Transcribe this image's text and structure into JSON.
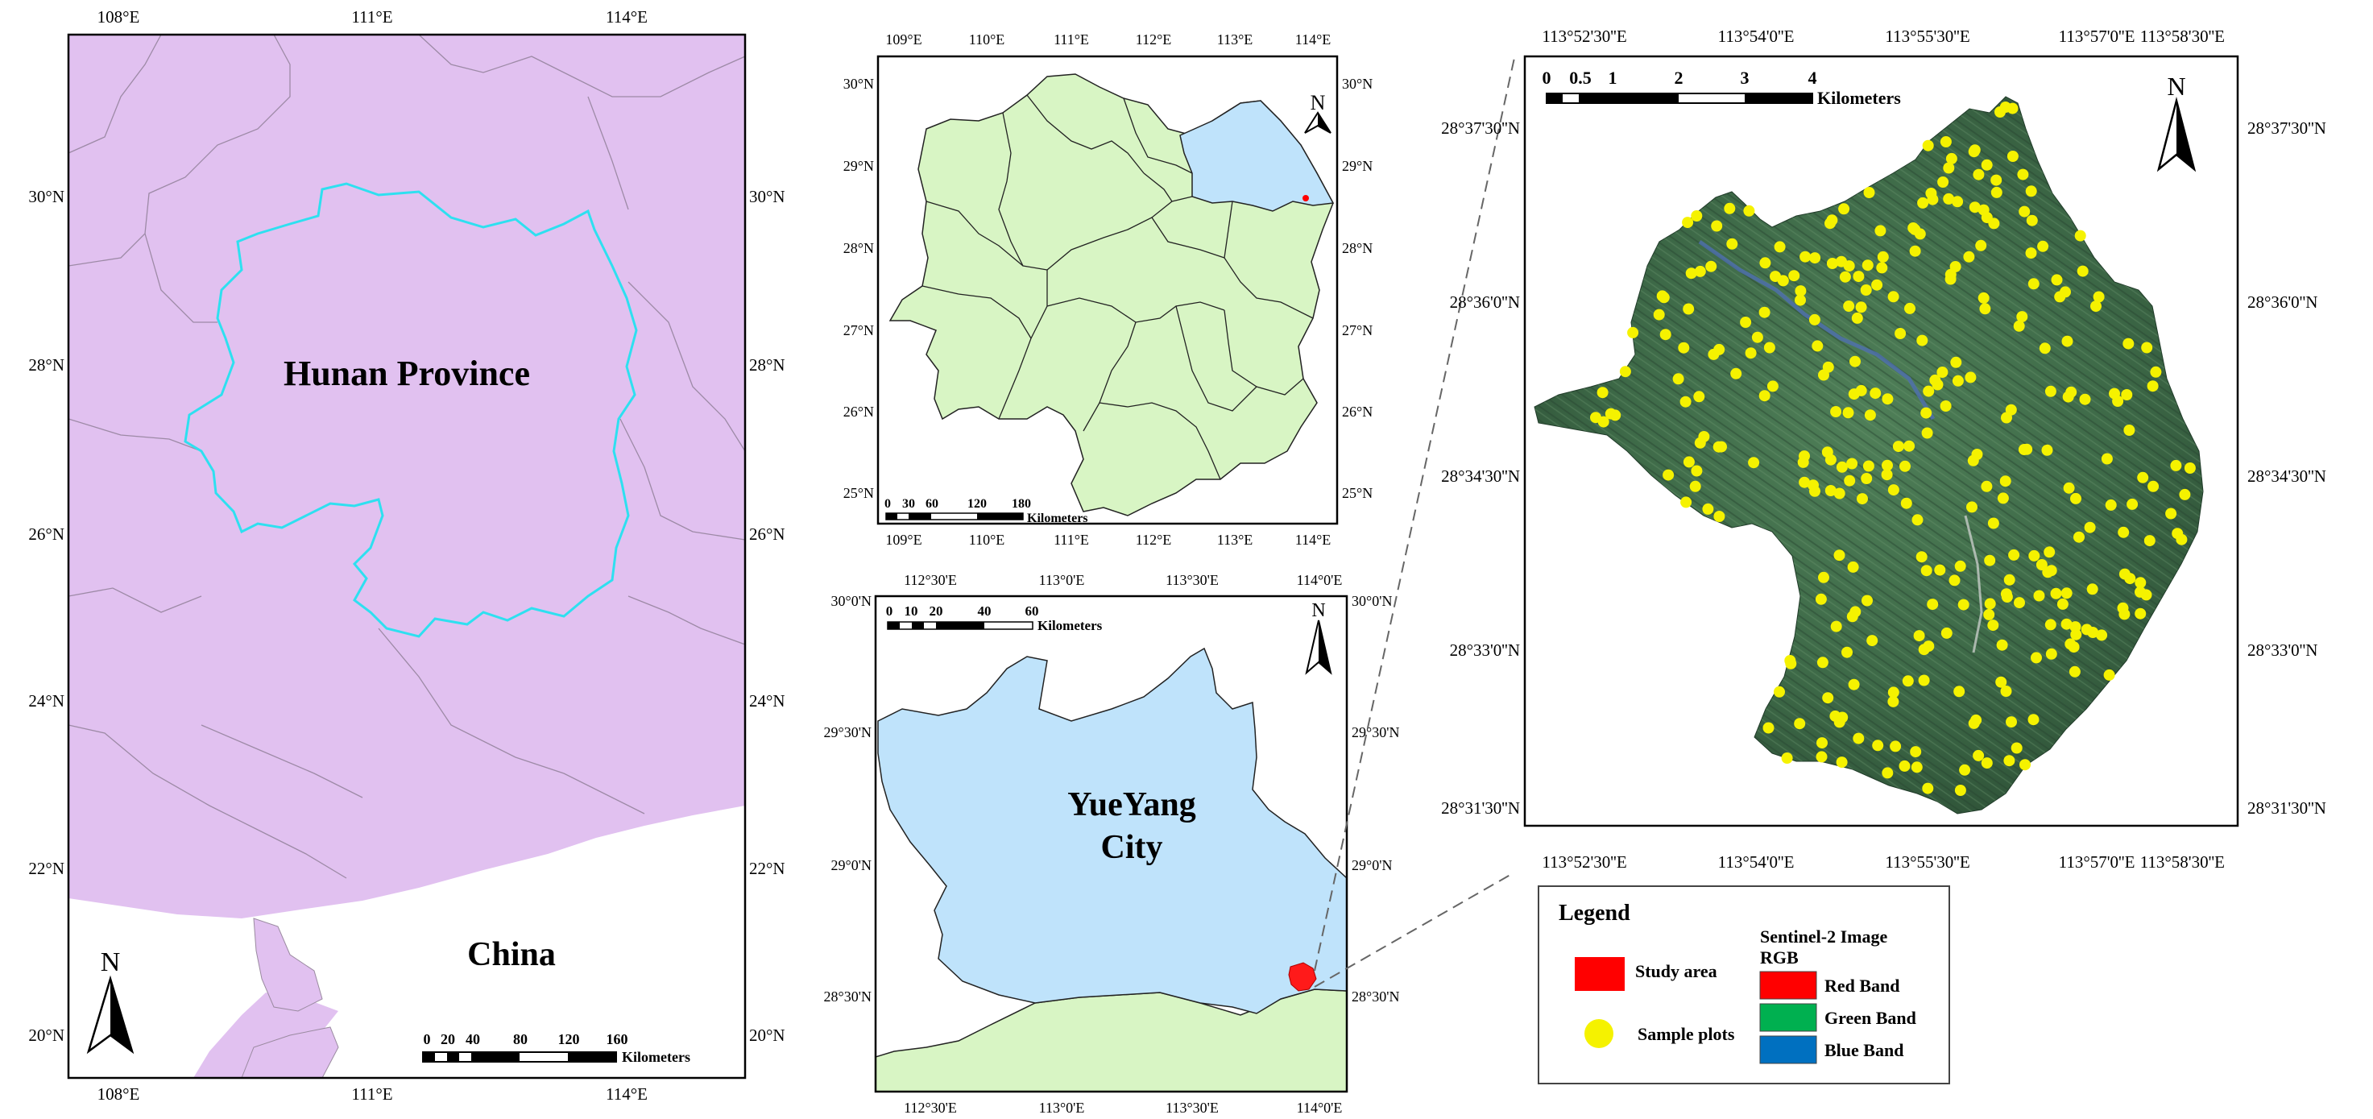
{
  "panels": {
    "china": {
      "top_ticks": [
        "108°E",
        "111°E",
        "114°E"
      ],
      "bottom_ticks": [
        "108°E",
        "111°E",
        "114°E"
      ],
      "left_ticks": [
        "30°N",
        "28°N",
        "26°N",
        "24°N",
        "22°N",
        "20°N"
      ],
      "right_ticks": [
        "30°N",
        "28°N",
        "26°N",
        "24°N",
        "22°N",
        "20°N"
      ],
      "province_label": "Hunan Province",
      "country_label": "China",
      "north_label": "N",
      "scale_numbers": [
        "0",
        "20",
        "40",
        "80",
        "120",
        "160"
      ],
      "scale_unit": "Kilometers",
      "colors": {
        "land": "#e1c1f0",
        "boundary": "#2ee0f0",
        "sea": "#ffffff"
      }
    },
    "hunan": {
      "top_ticks": [
        "109°E",
        "110°E",
        "111°E",
        "112°E",
        "113°E",
        "114°E"
      ],
      "bottom_ticks": [
        "109°E",
        "110°E",
        "111°E",
        "112°E",
        "113°E",
        "114°E"
      ],
      "left_ticks": [
        "30°N",
        "29°N",
        "28°N",
        "27°N",
        "26°N",
        "25°N"
      ],
      "right_ticks": [
        "30°N",
        "29°N",
        "28°N",
        "27°N",
        "26°N",
        "25°N"
      ],
      "north_label": "N",
      "scale_numbers": [
        "0",
        "30",
        "60",
        "120",
        "180"
      ],
      "scale_unit": "Kilometers",
      "colors": {
        "land": "#d8f5c4",
        "yueyang": "#bfe3fb"
      }
    },
    "yueyang": {
      "top_ticks": [
        "112°30'E",
        "113°0'E",
        "113°30'E",
        "114°0'E"
      ],
      "bottom_ticks": [
        "112°30'E",
        "113°0'E",
        "113°30'E",
        "114°0'E"
      ],
      "left_ticks": [
        "30°0'N",
        "29°30'N",
        "29°0'N",
        "28°30'N"
      ],
      "right_ticks": [
        "30°0'N",
        "29°30'N",
        "29°0'N",
        "28°30'N"
      ],
      "city_label_line1": "YueYang",
      "city_label_line2": "City",
      "north_label": "N",
      "scale_numbers": [
        "0",
        "10",
        "20",
        "40",
        "60"
      ],
      "scale_unit": "Kilometers",
      "colors": {
        "city": "#bfe3fb",
        "surround": "#d8f5c4",
        "study": "#ff1a1a"
      }
    },
    "study": {
      "top_ticks": [
        "113°52'30''E",
        "113°54'0''E",
        "113°55'30''E",
        "113°57'0''E",
        "113°58'30''E"
      ],
      "bottom_ticks": [
        "113°52'30''E",
        "113°54'0''E",
        "113°55'30''E",
        "113°57'0''E",
        "113°58'30''E"
      ],
      "left_ticks": [
        "28°37'30''N",
        "28°36'0''N",
        "28°34'30''N",
        "28°33'0''N",
        "28°31'30''N"
      ],
      "right_ticks": [
        "28°37'30''N",
        "28°36'0''N",
        "28°34'30''N",
        "28°33'0''N",
        "28°31'30''N"
      ],
      "north_label": "N",
      "scale_numbers": [
        "0",
        "0.5",
        "1",
        "2",
        "3",
        "4"
      ],
      "scale_unit": "Kilometers",
      "colors": {
        "image_base": "#3c6b48",
        "plot": "#f5f200"
      }
    }
  },
  "legend": {
    "title": "Legend",
    "study_area": "Study area",
    "sample_plots": "Sample plots",
    "sentinel_title": "Sentinel-2 Image",
    "rgb": "RGB",
    "bands": [
      {
        "label": "Red Band",
        "color": "#ff0000"
      },
      {
        "label": "Green Band",
        "color": "#00b050"
      },
      {
        "label": "Blue Band",
        "color": "#0070c0"
      }
    ]
  }
}
